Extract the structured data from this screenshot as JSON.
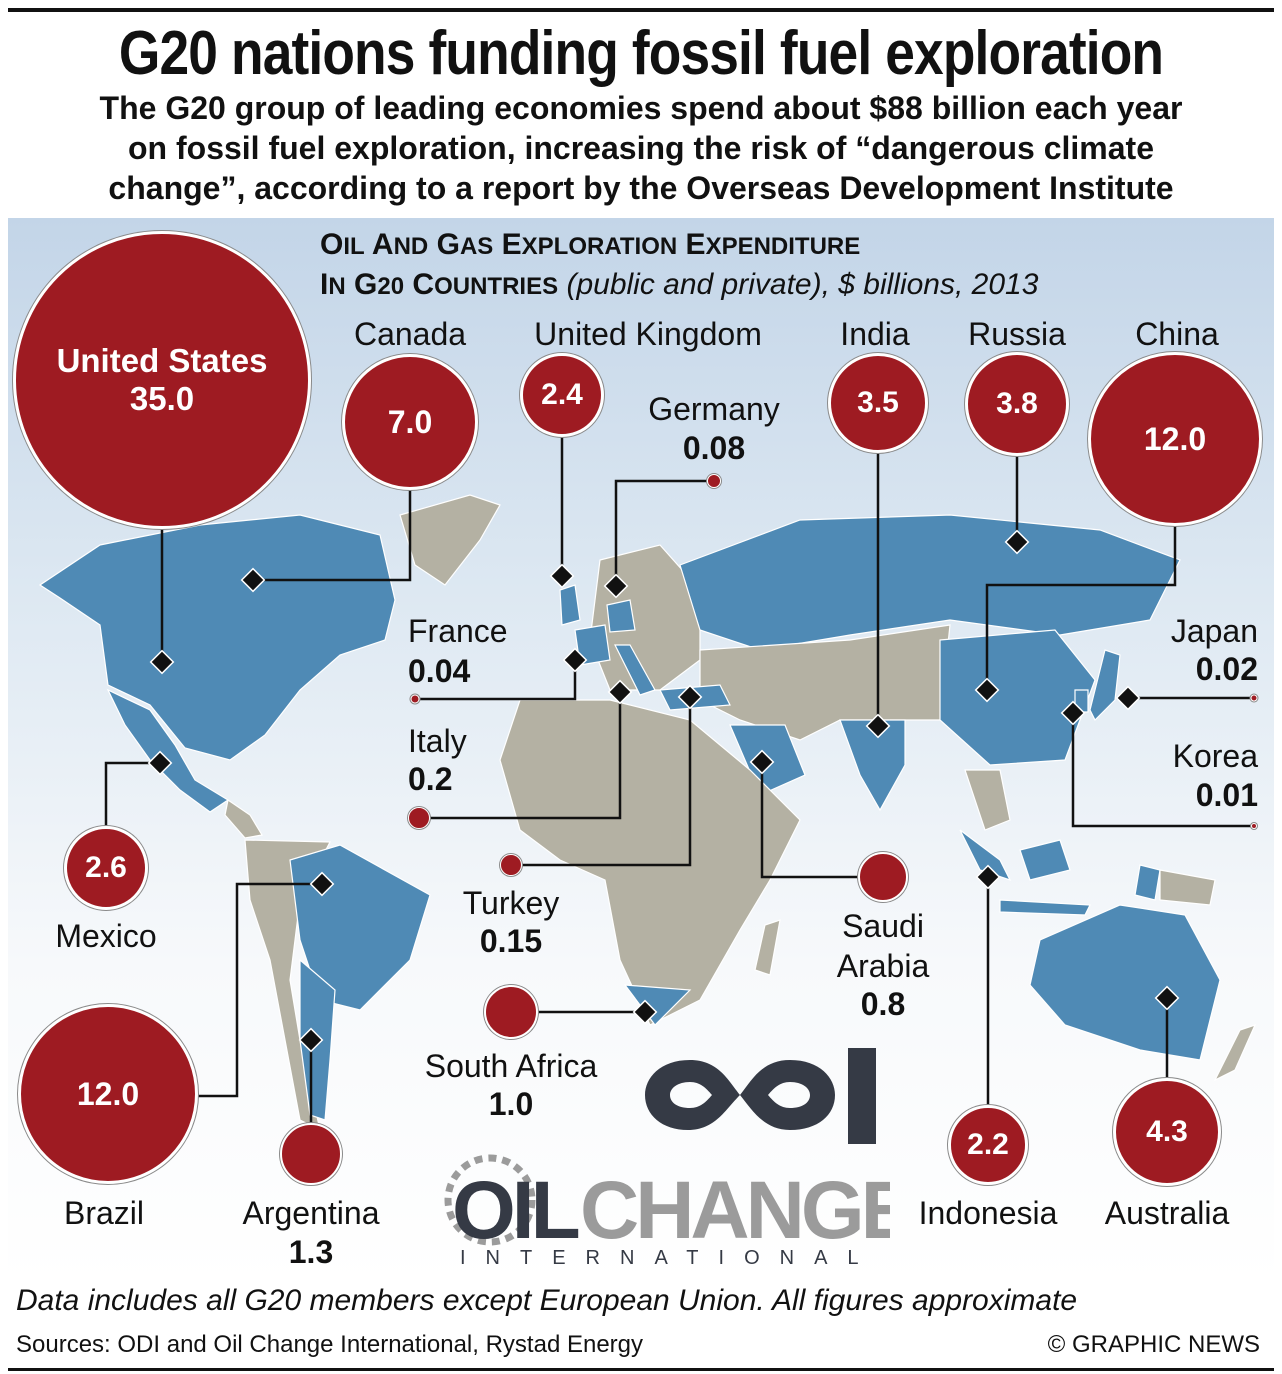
{
  "title": "G20 nations funding fossil fuel exploration",
  "subtitle": [
    "The G20 group of leading economies spend about $88 billion each year",
    "on fossil fuel exploration, increasing the risk of “dangerous climate",
    "change”, according to a report by the Overseas Development Institute"
  ],
  "chart_heading": {
    "line1": "Oil and Gas Exploration Expenditure",
    "line2_caps": "in G20 Countries",
    "line2_italic": "(public and private), $ billions, 2013"
  },
  "colors": {
    "bubble": "#9e1b22",
    "g20_land": "#4f8ab5",
    "other_land": "#b4b1a3",
    "logo_dark": "#353a45",
    "logo_gray": "#9b9b9b"
  },
  "countries": {
    "us": {
      "name": "United States",
      "value": "35.0"
    },
    "canada": {
      "name": "Canada",
      "value": "7.0"
    },
    "uk": {
      "name": "United Kingdom",
      "value": "2.4"
    },
    "germany": {
      "name": "Germany",
      "value": "0.08"
    },
    "india": {
      "name": "India",
      "value": "3.5"
    },
    "russia": {
      "name": "Russia",
      "value": "3.8"
    },
    "china": {
      "name": "China",
      "value": "12.0"
    },
    "france": {
      "name": "France",
      "value": "0.04"
    },
    "italy": {
      "name": "Italy",
      "value": "0.2"
    },
    "japan": {
      "name": "Japan",
      "value": "0.02"
    },
    "korea": {
      "name": "Korea",
      "value": "0.01"
    },
    "mexico": {
      "name": "Mexico",
      "value": "2.6"
    },
    "turkey": {
      "name": "Turkey",
      "value": "0.15"
    },
    "saudi": {
      "name1": "Saudi",
      "name2": "Arabia",
      "value": "0.8"
    },
    "south_africa": {
      "name": "South Africa",
      "value": "1.0"
    },
    "brazil": {
      "name": "Brazil",
      "value": "12.0"
    },
    "argentina": {
      "name": "Argentina",
      "value": "1.3"
    },
    "indonesia": {
      "name": "Indonesia",
      "value": "2.2"
    },
    "australia": {
      "name": "Australia",
      "value": "4.3"
    }
  },
  "chart_data": {
    "type": "bubble-map",
    "title": "Oil and Gas Exploration Expenditure in G20 Countries (public and private), $ billions, 2013",
    "categories": [
      "United States",
      "Canada",
      "United Kingdom",
      "Germany",
      "India",
      "Russia",
      "China",
      "France",
      "Italy",
      "Japan",
      "Korea",
      "Mexico",
      "Turkey",
      "Saudi Arabia",
      "South Africa",
      "Brazil",
      "Argentina",
      "Indonesia",
      "Australia"
    ],
    "values": [
      35.0,
      7.0,
      2.4,
      0.08,
      3.5,
      3.8,
      12.0,
      0.04,
      0.2,
      0.02,
      0.01,
      2.6,
      0.15,
      0.8,
      1.0,
      12.0,
      1.3,
      2.2,
      4.3
    ]
  },
  "logos": {
    "odi": "ODI",
    "oilchange_a": "OIL",
    "oilchange_b": "CHANGE",
    "oilchange_c": "INTERNATIONAL"
  },
  "footer": {
    "note": "Data includes all G20 members except European Union. All figures approximate",
    "sources": "Sources: ODI and Oil Change International, Rystad Energy",
    "copyright": "© GRAPHIC NEWS"
  }
}
